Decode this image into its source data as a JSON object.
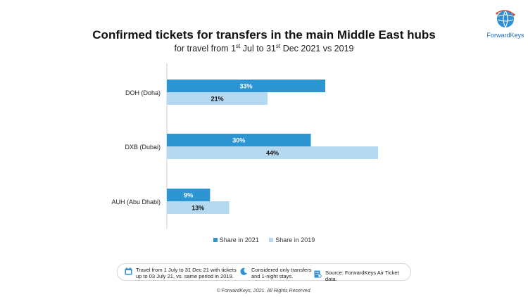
{
  "title": "Confirmed tickets for transfers in the main Middle East hubs",
  "subtitle": {
    "p1": "for travel from 1",
    "sup1": "st",
    "p2": " Jul to 31",
    "sup2": "st",
    "p3": " Dec 2021 vs 2019"
  },
  "logo": {
    "text": "ForwardKeys"
  },
  "colors": {
    "s2021": "#2e95d3",
    "s2019": "#b5d9f1",
    "axis": "#cccccc"
  },
  "chart_data": {
    "type": "bar",
    "orientation": "horizontal",
    "categories": [
      "DOH (Doha)",
      "DXB (Dubai)",
      "AUH (Abu Dhabi)"
    ],
    "series": [
      {
        "name": "Share in 2021",
        "values": [
          33,
          30,
          9
        ],
        "labels": [
          "33%",
          "30%",
          "9%"
        ]
      },
      {
        "name": "Share in 2019",
        "values": [
          21,
          44,
          13
        ],
        "labels": [
          "21%",
          "44%",
          "13%"
        ]
      }
    ],
    "xlim": [
      0,
      44
    ],
    "grid": false,
    "legend": "bottom"
  },
  "notes": [
    {
      "icon": "calendar-icon",
      "text_l1": "Travel from 1 July to 31 Dec 21 with tickets",
      "text_l2": "up to 03 July 21, vs. same period in 2019."
    },
    {
      "icon": "moon-icon",
      "text_l1": "Considered only transfers",
      "text_l2": "and 1-night stays."
    },
    {
      "icon": "document-icon",
      "text_l1": "Source: ForwardKeys Air Ticket data.",
      "text_l2": ""
    }
  ],
  "footer": "© ForwardKeys, 2021. All Rights Reserved."
}
